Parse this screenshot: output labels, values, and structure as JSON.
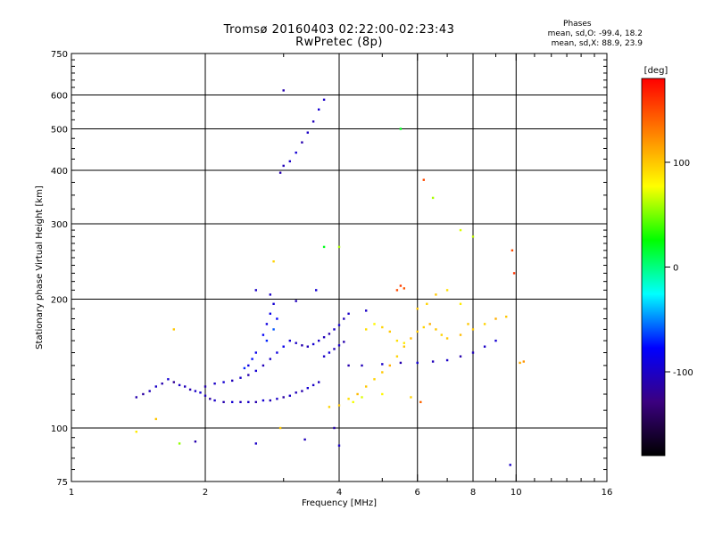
{
  "header": {
    "line1": "Tromsø 20160403 02:22:00-02:23:43",
    "line2": "RwPretec (8p)"
  },
  "stats": {
    "heading": "Phases",
    "line_o": "mean, sd,O: -99.4, 18.2",
    "line_x": "mean, sd,X:  88.9, 23.9"
  },
  "chart_data": {
    "type": "scatter",
    "xlabel": "Frequency [MHz]",
    "ylabel": "Stationary phase Virtual Height [km]",
    "xscale": "log",
    "yscale": "log",
    "xlim": [
      1,
      16
    ],
    "ylim": [
      75,
      750
    ],
    "xticks": [
      1,
      2,
      4,
      6,
      8,
      10,
      16
    ],
    "xtick_labels": [
      "1",
      "2",
      "4",
      "6",
      "8",
      "10",
      "16"
    ],
    "xgrid": [
      2,
      4,
      6,
      8,
      10
    ],
    "yticks": [
      75,
      100,
      200,
      300,
      400,
      500,
      600,
      750
    ],
    "ytick_labels": [
      "75",
      "100",
      "200",
      "300",
      "400",
      "500",
      "600",
      "750"
    ],
    "ygrid": [
      100,
      200,
      300,
      400,
      500,
      600
    ],
    "colorbar": {
      "label": "[deg]",
      "range": [
        -180,
        180
      ],
      "ticks": [
        100,
        0,
        -100
      ],
      "tick_labels": [
        "100",
        "0",
        "-100"
      ],
      "colors": [
        "#000000",
        "#3b0080",
        "#0000ff",
        "#00ffff",
        "#00ff00",
        "#ffff00",
        "#ff8000",
        "#ff0000"
      ]
    },
    "series": [
      {
        "description": "O-mode trace (blue/purple)",
        "points": [
          [
            1.4,
            118,
            -110
          ],
          [
            1.45,
            120,
            -115
          ],
          [
            1.5,
            122,
            -105
          ],
          [
            1.55,
            125,
            -100
          ],
          [
            1.6,
            127,
            -110
          ],
          [
            1.65,
            130,
            -95
          ],
          [
            1.7,
            128,
            -120
          ],
          [
            1.75,
            126,
            -100
          ],
          [
            1.8,
            125,
            -105
          ],
          [
            1.85,
            123,
            -110
          ],
          [
            1.9,
            122,
            -100
          ],
          [
            1.95,
            121,
            -95
          ],
          [
            2.0,
            119,
            -105
          ],
          [
            2.05,
            117,
            -115
          ],
          [
            2.1,
            116,
            -100
          ],
          [
            2.2,
            115,
            -110
          ],
          [
            2.3,
            115,
            -95
          ],
          [
            2.4,
            115,
            -105
          ],
          [
            2.5,
            115,
            -100
          ],
          [
            2.6,
            115,
            -110
          ],
          [
            2.7,
            116,
            -95
          ],
          [
            2.8,
            116,
            -105
          ],
          [
            2.9,
            117,
            -100
          ],
          [
            3.0,
            118,
            -115
          ],
          [
            3.1,
            119,
            -100
          ],
          [
            3.2,
            121,
            -105
          ],
          [
            3.3,
            122,
            -110
          ],
          [
            3.4,
            124,
            -95
          ],
          [
            3.5,
            126,
            -100
          ],
          [
            3.6,
            128,
            -105
          ],
          [
            2.0,
            125,
            -110
          ],
          [
            2.1,
            127,
            -100
          ],
          [
            2.2,
            128,
            -95
          ],
          [
            2.3,
            129,
            -105
          ],
          [
            2.4,
            131,
            -100
          ],
          [
            2.5,
            133,
            -110
          ],
          [
            2.6,
            136,
            -95
          ],
          [
            2.7,
            140,
            -105
          ],
          [
            2.8,
            145,
            -100
          ],
          [
            2.9,
            150,
            -90
          ],
          [
            3.0,
            155,
            -85
          ],
          [
            3.1,
            160,
            -95
          ],
          [
            3.2,
            158,
            -100
          ],
          [
            3.3,
            156,
            -110
          ],
          [
            3.4,
            155,
            -105
          ],
          [
            3.5,
            157,
            -95
          ],
          [
            3.6,
            160,
            -100
          ],
          [
            3.7,
            163,
            -105
          ],
          [
            3.8,
            166,
            -110
          ],
          [
            3.9,
            170,
            -100
          ],
          [
            4.0,
            174,
            -95
          ],
          [
            4.1,
            180,
            -105
          ],
          [
            4.2,
            185,
            -100
          ],
          [
            2.7,
            165,
            -80
          ],
          [
            2.75,
            175,
            -90
          ],
          [
            2.8,
            185,
            -85
          ],
          [
            2.85,
            195,
            -95
          ],
          [
            2.8,
            205,
            -100
          ],
          [
            2.75,
            160,
            -70
          ],
          [
            2.6,
            150,
            -85
          ],
          [
            2.55,
            145,
            -75
          ],
          [
            2.5,
            140,
            -90
          ],
          [
            2.45,
            138,
            -70
          ],
          [
            2.85,
            170,
            -60
          ],
          [
            2.9,
            180,
            -80
          ],
          [
            4.2,
            140,
            -110
          ],
          [
            4.5,
            140,
            -105
          ],
          [
            5.0,
            141,
            -100
          ],
          [
            5.5,
            142,
            -110
          ],
          [
            6.0,
            142,
            -95
          ],
          [
            6.5,
            143,
            -105
          ],
          [
            7.0,
            144,
            -100
          ],
          [
            7.5,
            147,
            -110
          ],
          [
            8.0,
            150,
            -105
          ],
          [
            8.5,
            155,
            -100
          ],
          [
            9.0,
            160,
            -95
          ],
          [
            3.7,
            147,
            -100
          ],
          [
            3.8,
            150,
            -95
          ],
          [
            3.9,
            153,
            -105
          ],
          [
            4.0,
            156,
            -100
          ],
          [
            4.1,
            159,
            -110
          ],
          [
            2.95,
            395,
            -110
          ],
          [
            3.0,
            410,
            -105
          ],
          [
            3.1,
            420,
            -100
          ],
          [
            3.2,
            440,
            -95
          ],
          [
            3.3,
            465,
            -110
          ],
          [
            3.4,
            490,
            -100
          ],
          [
            3.5,
            520,
            -105
          ],
          [
            3.6,
            555,
            -95
          ],
          [
            3.7,
            585,
            -100
          ],
          [
            3.0,
            615,
            -110
          ],
          [
            2.6,
            210,
            -100
          ],
          [
            3.55,
            210,
            -95
          ],
          [
            3.2,
            198,
            -105
          ],
          [
            4.6,
            188,
            -100
          ],
          [
            1.9,
            93,
            -110
          ],
          [
            2.6,
            92,
            -100
          ],
          [
            3.35,
            94,
            -105
          ],
          [
            3.9,
            100,
            -110
          ],
          [
            4.0,
            91,
            -100
          ],
          [
            9.7,
            82,
            -100
          ]
        ]
      },
      {
        "description": "X-mode trace (yellow/green/orange)",
        "points": [
          [
            3.8,
            112,
            95
          ],
          [
            4.0,
            113,
            100
          ],
          [
            4.2,
            117,
            90
          ],
          [
            4.4,
            120,
            105
          ],
          [
            4.6,
            125,
            100
          ],
          [
            4.8,
            130,
            95
          ],
          [
            5.0,
            135,
            100
          ],
          [
            5.2,
            140,
            110
          ],
          [
            5.4,
            147,
            95
          ],
          [
            5.6,
            155,
            100
          ],
          [
            5.8,
            162,
            105
          ],
          [
            6.0,
            168,
            100
          ],
          [
            6.2,
            172,
            95
          ],
          [
            6.4,
            175,
            110
          ],
          [
            6.6,
            170,
            100
          ],
          [
            6.8,
            165,
            95
          ],
          [
            7.0,
            162,
            100
          ],
          [
            7.5,
            165,
            105
          ],
          [
            8.0,
            170,
            100
          ],
          [
            8.5,
            175,
            95
          ],
          [
            9.0,
            180,
            110
          ],
          [
            9.5,
            182,
            100
          ],
          [
            4.6,
            170,
            90
          ],
          [
            4.8,
            175,
            80
          ],
          [
            5.0,
            172,
            95
          ],
          [
            5.2,
            168,
            100
          ],
          [
            5.4,
            160,
            90
          ],
          [
            5.6,
            158,
            85
          ],
          [
            6.0,
            190,
            100
          ],
          [
            6.3,
            195,
            95
          ],
          [
            6.6,
            205,
            100
          ],
          [
            7.0,
            210,
            90
          ],
          [
            7.5,
            195,
            85
          ],
          [
            7.8,
            175,
            100
          ],
          [
            5.4,
            210,
            150
          ],
          [
            5.5,
            215,
            155
          ],
          [
            5.6,
            212,
            145
          ],
          [
            6.2,
            380,
            150
          ],
          [
            6.5,
            345,
            60
          ],
          [
            7.5,
            290,
            70
          ],
          [
            8.0,
            280,
            65
          ],
          [
            9.8,
            260,
            150
          ],
          [
            9.9,
            230,
            160
          ],
          [
            10.2,
            142,
            110
          ],
          [
            10.4,
            143,
            120
          ],
          [
            4.3,
            115,
            75
          ],
          [
            4.5,
            118,
            70
          ],
          [
            5.0,
            120,
            80
          ],
          [
            5.8,
            118,
            95
          ],
          [
            6.1,
            115,
            140
          ],
          [
            2.85,
            245,
            95
          ],
          [
            1.7,
            170,
            100
          ],
          [
            1.55,
            105,
            100
          ],
          [
            1.75,
            92,
            55
          ],
          [
            1.4,
            98,
            85
          ],
          [
            2.95,
            100,
            100
          ],
          [
            5.5,
            500,
            20
          ],
          [
            3.7,
            265,
            20
          ],
          [
            4.0,
            265,
            60
          ]
        ]
      }
    ]
  }
}
